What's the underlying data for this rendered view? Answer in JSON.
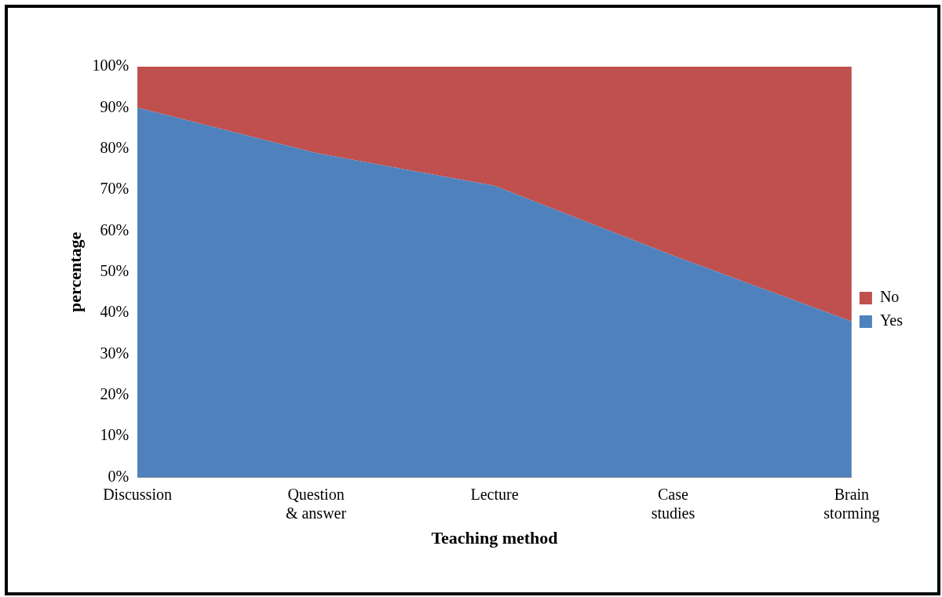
{
  "chart_data": {
    "type": "area",
    "stacked": true,
    "xlabel": "Teaching method",
    "ylabel": "percentage",
    "categories": [
      "Discussion",
      "Question & answer",
      "Lecture",
      "Case studies",
      "Brain storming"
    ],
    "series": [
      {
        "name": "Yes",
        "color": "#4f81bd",
        "values": [
          90,
          79,
          71,
          54,
          38
        ]
      },
      {
        "name": "No",
        "color": "#c0504d",
        "values": [
          10,
          21,
          29,
          46,
          62
        ]
      }
    ],
    "ylim": [
      0,
      100
    ],
    "yticks": [
      {
        "value": 0,
        "label": "0%"
      },
      {
        "value": 10,
        "label": "10%"
      },
      {
        "value": 20,
        "label": "20%"
      },
      {
        "value": 30,
        "label": "30%"
      },
      {
        "value": 40,
        "label": "40%"
      },
      {
        "value": 50,
        "label": "50%"
      },
      {
        "value": 60,
        "label": "60%"
      },
      {
        "value": 70,
        "label": "70%"
      },
      {
        "value": 80,
        "label": "80%"
      },
      {
        "value": 90,
        "label": "90%"
      },
      {
        "value": 100,
        "label": "100%"
      }
    ],
    "grid": false,
    "legend": "right"
  }
}
